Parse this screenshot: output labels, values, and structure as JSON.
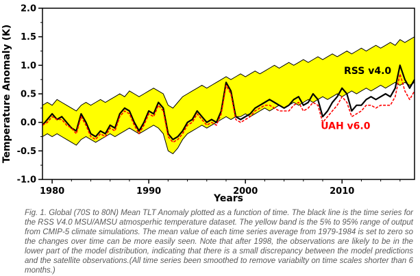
{
  "caption": {
    "text": "Fig. 1.  Global (70S to 80N) Mean TLT Anomaly plotted as a function of time.  The black line is the time series for the  RSS V4.0 MSU/AMSU atmosperhic temperature dataset.  The yellow band is the 5% to 95% range of output from CMIP-5 climate simulations.  The mean value of each time series average from 1979-1984 is set to zero so the changes over time can be more easily seen.  Note that after 1998, the observations are likely to be in the lower part of the model distribution, indicating that there is a small discrepancy between the model predictions and the satellite observations.(All time series been smoothed to remove variabilty on time scales shorter than 6 months.)"
  },
  "chart_data": {
    "type": "line",
    "title": "",
    "xlabel": "Years",
    "ylabel": "Temperature Anomaly (K)",
    "xlim": [
      1979,
      2017.5
    ],
    "ylim": [
      -1.0,
      2.0
    ],
    "xticks": [
      1980,
      1990,
      2000,
      2010
    ],
    "xminor": [
      1982,
      1984,
      1986,
      1988,
      1992,
      1994,
      1996,
      1998,
      2002,
      2004,
      2006,
      2008,
      2012,
      2014,
      2016
    ],
    "yticks": [
      -1.0,
      -0.5,
      0.0,
      0.5,
      1.0,
      1.5,
      2.0
    ],
    "yminor": [
      -0.75,
      -0.25,
      0.25,
      0.75,
      1.25,
      1.75
    ],
    "grid": false,
    "x": [
      1979,
      1979.5,
      1980,
      1980.5,
      1981,
      1981.5,
      1982,
      1982.5,
      1983,
      1983.5,
      1984,
      1984.5,
      1985,
      1985.5,
      1986,
      1986.5,
      1987,
      1987.5,
      1988,
      1988.5,
      1989,
      1989.5,
      1990,
      1990.5,
      1991,
      1991.5,
      1992,
      1992.5,
      1993,
      1993.5,
      1994,
      1994.5,
      1995,
      1995.5,
      1996,
      1996.5,
      1997,
      1997.5,
      1998,
      1998.5,
      1999,
      1999.5,
      2000,
      2000.5,
      2001,
      2001.5,
      2002,
      2002.5,
      2003,
      2003.5,
      2004,
      2004.5,
      2005,
      2005.5,
      2006,
      2006.5,
      2007,
      2007.5,
      2008,
      2008.5,
      2009,
      2009.5,
      2010,
      2010.5,
      2011,
      2011.5,
      2012,
      2012.5,
      2013,
      2013.5,
      2014,
      2014.5,
      2015,
      2015.5,
      2016,
      2016.5,
      2017,
      2017.5
    ],
    "band": {
      "name": "CMIP-5 climate simulations 5% to 95% range",
      "color": "#ffff00",
      "edge_color": "#000000",
      "upper": [
        0.3,
        0.35,
        0.3,
        0.4,
        0.35,
        0.3,
        0.25,
        0.2,
        0.3,
        0.35,
        0.3,
        0.35,
        0.4,
        0.35,
        0.4,
        0.45,
        0.5,
        0.45,
        0.55,
        0.5,
        0.45,
        0.5,
        0.55,
        0.6,
        0.55,
        0.5,
        0.3,
        0.25,
        0.35,
        0.45,
        0.5,
        0.55,
        0.6,
        0.65,
        0.6,
        0.65,
        0.7,
        0.75,
        0.8,
        0.75,
        0.8,
        0.85,
        0.8,
        0.85,
        0.9,
        0.85,
        0.9,
        0.95,
        1.0,
        0.95,
        1.0,
        1.05,
        1.0,
        1.05,
        1.1,
        1.05,
        1.1,
        1.15,
        1.1,
        1.15,
        1.2,
        1.15,
        1.2,
        1.25,
        1.2,
        1.25,
        1.3,
        1.25,
        1.3,
        1.35,
        1.3,
        1.35,
        1.4,
        1.35,
        1.45,
        1.4,
        1.45,
        1.5
      ],
      "lower": [
        -0.25,
        -0.2,
        -0.25,
        -0.2,
        -0.25,
        -0.3,
        -0.35,
        -0.4,
        -0.3,
        -0.25,
        -0.3,
        -0.35,
        -0.3,
        -0.25,
        -0.2,
        -0.25,
        -0.2,
        -0.15,
        -0.1,
        -0.15,
        -0.2,
        -0.15,
        -0.1,
        -0.05,
        -0.1,
        -0.2,
        -0.5,
        -0.55,
        -0.45,
        -0.3,
        -0.2,
        -0.15,
        -0.1,
        -0.05,
        -0.1,
        -0.05,
        0,
        0.05,
        0.1,
        0.05,
        0.1,
        0.1,
        0.15,
        0.1,
        0.15,
        0.2,
        0.25,
        0.2,
        0.25,
        0.3,
        0.25,
        0.3,
        0.35,
        0.3,
        0.35,
        0.4,
        0.35,
        0.4,
        0.45,
        0.4,
        0.45,
        0.5,
        0.45,
        0.5,
        0.55,
        0.5,
        0.55,
        0.6,
        0.55,
        0.6,
        0.65,
        0.6,
        0.65,
        0.7,
        0.65,
        0.7,
        0.65,
        0.7
      ]
    },
    "series": [
      {
        "name": "RSS v4.0",
        "id": "rss-line",
        "color": "#000000",
        "width": 2.2,
        "dash": "",
        "values": [
          -0.05,
          0.05,
          0.15,
          0.05,
          0.1,
          0,
          -0.1,
          -0.15,
          0.15,
          0,
          -0.2,
          -0.25,
          -0.15,
          -0.2,
          -0.05,
          -0.1,
          0.15,
          0.25,
          0.2,
          0,
          -0.15,
          0,
          0.2,
          0.15,
          0.35,
          0.25,
          -0.2,
          -0.3,
          -0.25,
          -0.15,
          0,
          0.05,
          0.2,
          0.1,
          0,
          0.05,
          0,
          0.2,
          0.7,
          0.55,
          0.1,
          0.05,
          0.1,
          0.15,
          0.25,
          0.3,
          0.35,
          0.4,
          0.35,
          0.3,
          0.25,
          0.3,
          0.4,
          0.45,
          0.3,
          0.35,
          0.5,
          0.4,
          0.1,
          0.2,
          0.35,
          0.45,
          0.6,
          0.5,
          0.2,
          0.3,
          0.3,
          0.4,
          0.45,
          0.4,
          0.45,
          0.5,
          0.45,
          0.6,
          1.0,
          0.75,
          0.6,
          0.75
        ]
      },
      {
        "name": "UAH v6.0",
        "id": "uah-line",
        "color": "#ff0000",
        "width": 1.6,
        "dash": "4 2",
        "values": [
          -0.05,
          0,
          0.1,
          0.05,
          0.05,
          -0.05,
          -0.1,
          -0.2,
          0.1,
          -0.05,
          -0.25,
          -0.3,
          -0.2,
          -0.25,
          -0.1,
          -0.15,
          0.1,
          0.2,
          0.15,
          -0.05,
          -0.2,
          -0.05,
          0.15,
          0.1,
          0.3,
          0.2,
          -0.25,
          -0.35,
          -0.3,
          -0.2,
          -0.05,
          0,
          0.15,
          0.05,
          -0.05,
          0,
          -0.05,
          0.15,
          0.65,
          0.5,
          0.05,
          0,
          0.05,
          0.1,
          0.2,
          0.25,
          0.3,
          0.3,
          0.25,
          0.2,
          0.2,
          0.2,
          0.3,
          0.35,
          0.2,
          0.25,
          0.35,
          0.3,
          0,
          0.1,
          0.2,
          0.3,
          0.45,
          0.35,
          0.1,
          0.15,
          0.2,
          0.3,
          0.3,
          0.25,
          0.3,
          0.3,
          0.3,
          0.45,
          0.85,
          0.55,
          0.4,
          0.55
        ]
      }
    ],
    "annotations": [
      {
        "text": "RSS v4.0",
        "x": 2010.2,
        "y": 0.85,
        "color": "#000000",
        "name": "rss-label"
      },
      {
        "text": "UAH v6.0",
        "x": 2007.8,
        "y": -0.12,
        "color": "#ff0000",
        "name": "uah-label"
      }
    ]
  }
}
